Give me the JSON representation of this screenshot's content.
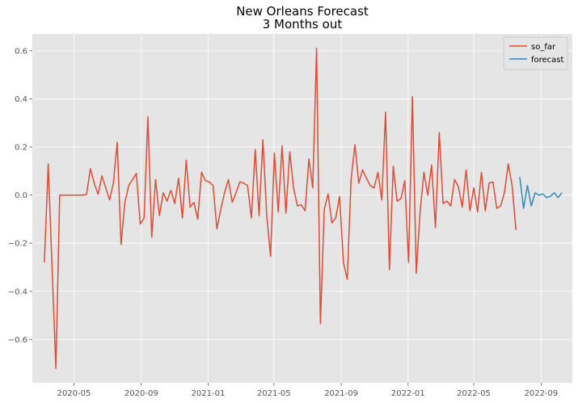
{
  "chart_data": {
    "type": "line",
    "title": "New Orleans Forecast",
    "subtitle": "3 Months out",
    "xlabel": "",
    "ylabel": "",
    "x_tick_labels": [
      "2020-05",
      "2020-09",
      "2021-01",
      "2021-05",
      "2021-09",
      "2022-01",
      "2022-05",
      "2022-09"
    ],
    "x_ticks": [
      "2020-05-01",
      "2020-09-01",
      "2021-01-01",
      "2021-05-01",
      "2021-09-01",
      "2022-01-01",
      "2022-05-01",
      "2022-09-01"
    ],
    "xlim": [
      "2020-02-15",
      "2022-10-28"
    ],
    "ylim": [
      -0.78,
      0.67
    ],
    "y_ticks": [
      -0.6,
      -0.4,
      -0.2,
      0.0,
      0.2,
      0.4,
      0.6
    ],
    "y_tick_labels": [
      "−0.6",
      "−0.4",
      "−0.2",
      "0.0",
      "0.2",
      "0.4",
      "0.6"
    ],
    "grid": true,
    "legend_position": "top-right",
    "colors": {
      "so_far": "#E24A33",
      "forecast": "#348ABD",
      "plot_bg": "#E5E5E5",
      "grid": "#FFFFFF"
    },
    "series": [
      {
        "name": "so_far",
        "points": [
          [
            "2020-03-08",
            -0.28
          ],
          [
            "2020-03-15",
            0.13
          ],
          [
            "2020-03-22",
            -0.3
          ],
          [
            "2020-03-29",
            -0.72
          ],
          [
            "2020-04-05",
            0.0
          ],
          [
            "2020-04-12",
            0.0
          ],
          [
            "2020-04-19",
            0.0
          ],
          [
            "2020-04-26",
            0.0
          ],
          [
            "2020-05-03",
            0.0
          ],
          [
            "2020-05-10",
            0.0
          ],
          [
            "2020-05-17",
            0.0
          ],
          [
            "2020-05-24",
            0.003
          ],
          [
            "2020-05-31",
            0.11
          ],
          [
            "2020-06-07",
            0.05
          ],
          [
            "2020-06-14",
            0.003
          ],
          [
            "2020-06-21",
            0.08
          ],
          [
            "2020-06-28",
            0.03
          ],
          [
            "2020-07-05",
            -0.02
          ],
          [
            "2020-07-12",
            0.05
          ],
          [
            "2020-07-19",
            0.22
          ],
          [
            "2020-07-26",
            -0.205
          ],
          [
            "2020-08-02",
            -0.03
          ],
          [
            "2020-08-09",
            0.04
          ],
          [
            "2020-08-16",
            0.065
          ],
          [
            "2020-08-23",
            0.09
          ],
          [
            "2020-08-30",
            -0.12
          ],
          [
            "2020-09-06",
            -0.095
          ],
          [
            "2020-09-13",
            0.325
          ],
          [
            "2020-09-20",
            -0.175
          ],
          [
            "2020-09-27",
            0.065
          ],
          [
            "2020-10-04",
            -0.085
          ],
          [
            "2020-10-11",
            0.01
          ],
          [
            "2020-10-18",
            -0.025
          ],
          [
            "2020-10-25",
            0.02
          ],
          [
            "2020-11-01",
            -0.035
          ],
          [
            "2020-11-08",
            0.07
          ],
          [
            "2020-11-15",
            -0.095
          ],
          [
            "2020-11-22",
            0.145
          ],
          [
            "2020-11-29",
            -0.05
          ],
          [
            "2020-12-06",
            -0.03
          ],
          [
            "2020-12-13",
            -0.1
          ],
          [
            "2020-12-20",
            0.095
          ],
          [
            "2020-12-27",
            0.06
          ],
          [
            "2021-01-03",
            0.055
          ],
          [
            "2021-01-10",
            0.04
          ],
          [
            "2021-01-17",
            -0.14
          ],
          [
            "2021-01-24",
            -0.06
          ],
          [
            "2021-01-31",
            0.01
          ],
          [
            "2021-02-07",
            0.065
          ],
          [
            "2021-02-14",
            -0.03
          ],
          [
            "2021-02-21",
            0.01
          ],
          [
            "2021-02-28",
            0.055
          ],
          [
            "2021-03-07",
            0.05
          ],
          [
            "2021-03-14",
            0.04
          ],
          [
            "2021-03-21",
            -0.095
          ],
          [
            "2021-03-28",
            0.19
          ],
          [
            "2021-04-04",
            -0.085
          ],
          [
            "2021-04-11",
            0.23
          ],
          [
            "2021-04-18",
            -0.085
          ],
          [
            "2021-04-25",
            -0.255
          ],
          [
            "2021-05-02",
            0.175
          ],
          [
            "2021-05-09",
            -0.07
          ],
          [
            "2021-05-16",
            0.205
          ],
          [
            "2021-05-23",
            -0.075
          ],
          [
            "2021-05-30",
            0.18
          ],
          [
            "2021-06-06",
            0.03
          ],
          [
            "2021-06-13",
            -0.045
          ],
          [
            "2021-06-20",
            -0.04
          ],
          [
            "2021-06-27",
            -0.065
          ],
          [
            "2021-07-04",
            0.15
          ],
          [
            "2021-07-11",
            0.03
          ],
          [
            "2021-07-18",
            0.61
          ],
          [
            "2021-07-25",
            -0.535
          ],
          [
            "2021-08-01",
            -0.06
          ],
          [
            "2021-08-08",
            0.005
          ],
          [
            "2021-08-15",
            -0.115
          ],
          [
            "2021-08-22",
            -0.095
          ],
          [
            "2021-08-29",
            -0.005
          ],
          [
            "2021-09-05",
            -0.28
          ],
          [
            "2021-09-12",
            -0.35
          ],
          [
            "2021-09-19",
            0.065
          ],
          [
            "2021-09-26",
            0.21
          ],
          [
            "2021-10-03",
            0.05
          ],
          [
            "2021-10-10",
            0.105
          ],
          [
            "2021-10-17",
            0.07
          ],
          [
            "2021-10-24",
            0.04
          ],
          [
            "2021-10-31",
            0.03
          ],
          [
            "2021-11-07",
            0.095
          ],
          [
            "2021-11-14",
            -0.02
          ],
          [
            "2021-11-21",
            0.345
          ],
          [
            "2021-11-28",
            -0.31
          ],
          [
            "2021-12-05",
            0.12
          ],
          [
            "2021-12-12",
            -0.025
          ],
          [
            "2021-12-19",
            -0.015
          ],
          [
            "2021-12-26",
            0.06
          ],
          [
            "2022-01-02",
            -0.28
          ],
          [
            "2022-01-09",
            0.41
          ],
          [
            "2022-01-16",
            -0.325
          ],
          [
            "2022-01-23",
            -0.07
          ],
          [
            "2022-01-30",
            0.095
          ],
          [
            "2022-02-06",
            0.0
          ],
          [
            "2022-02-13",
            0.125
          ],
          [
            "2022-02-20",
            -0.135
          ],
          [
            "2022-02-27",
            0.26
          ],
          [
            "2022-03-06",
            -0.035
          ],
          [
            "2022-03-13",
            -0.025
          ],
          [
            "2022-03-20",
            -0.045
          ],
          [
            "2022-03-27",
            0.065
          ],
          [
            "2022-04-03",
            0.035
          ],
          [
            "2022-04-10",
            -0.05
          ],
          [
            "2022-04-17",
            0.105
          ],
          [
            "2022-04-24",
            -0.065
          ],
          [
            "2022-05-01",
            0.03
          ],
          [
            "2022-05-08",
            -0.07
          ],
          [
            "2022-05-15",
            0.095
          ],
          [
            "2022-05-22",
            -0.065
          ],
          [
            "2022-05-29",
            0.05
          ],
          [
            "2022-06-05",
            0.055
          ],
          [
            "2022-06-12",
            -0.055
          ],
          [
            "2022-06-19",
            -0.045
          ],
          [
            "2022-06-26",
            0.01
          ],
          [
            "2022-07-03",
            0.13
          ],
          [
            "2022-07-10",
            0.04
          ],
          [
            "2022-07-17",
            -0.145
          ]
        ]
      },
      {
        "name": "forecast",
        "points": [
          [
            "2022-07-24",
            0.075
          ],
          [
            "2022-07-31",
            -0.055
          ],
          [
            "2022-08-07",
            0.04
          ],
          [
            "2022-08-14",
            -0.045
          ],
          [
            "2022-08-21",
            0.01
          ],
          [
            "2022-08-28",
            0.0
          ],
          [
            "2022-09-04",
            0.005
          ],
          [
            "2022-09-11",
            -0.01
          ],
          [
            "2022-09-18",
            -0.005
          ],
          [
            "2022-09-25",
            0.01
          ],
          [
            "2022-10-02",
            -0.01
          ],
          [
            "2022-10-09",
            0.01
          ]
        ]
      }
    ]
  }
}
